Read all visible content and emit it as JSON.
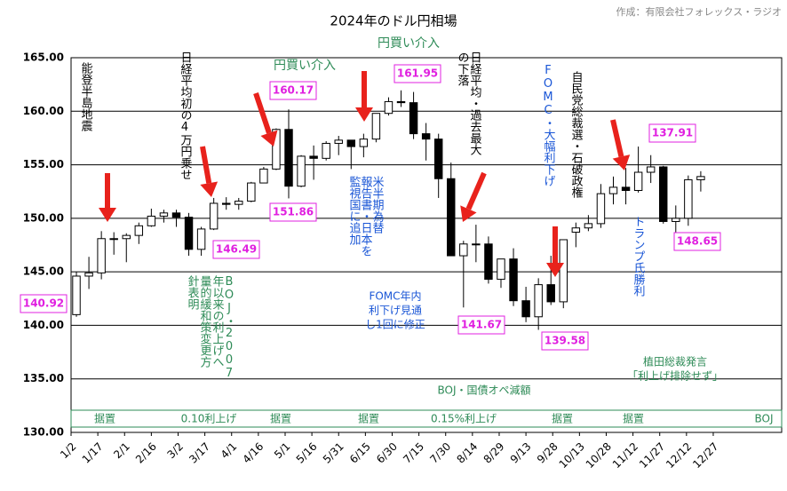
{
  "chart_data": {
    "type": "candlestick",
    "title": "2024年のドル円相場",
    "source": "作成：有限会社フォレックス・ラジオ",
    "color": "#000000",
    "x": [
      "1/5",
      "1/12",
      "1/19",
      "1/26",
      "2/2",
      "2/9",
      "2/16",
      "2/23",
      "3/1",
      "3/8",
      "3/15",
      "3/22",
      "3/29",
      "4/5",
      "4/12",
      "4/19",
      "4/26",
      "5/3",
      "5/10",
      "5/17",
      "5/24",
      "5/31",
      "6/7",
      "6/14",
      "6/21",
      "6/28",
      "7/5",
      "7/12",
      "7/19",
      "7/26",
      "8/2",
      "8/9",
      "8/16",
      "8/23",
      "8/30",
      "9/6",
      "9/13",
      "9/20",
      "9/27",
      "10/4",
      "10/11",
      "10/18",
      "10/25",
      "11/1",
      "11/8",
      "11/15",
      "11/22",
      "11/29",
      "12/6",
      "12/13",
      "12/20"
    ],
    "open": [
      141.0,
      144.6,
      144.9,
      148.1,
      148.1,
      148.4,
      149.3,
      150.2,
      150.5,
      150.1,
      147.1,
      149.0,
      151.4,
      151.3,
      151.6,
      153.3,
      154.6,
      158.3,
      153.0,
      155.8,
      155.6,
      157.0,
      157.3,
      156.7,
      157.4,
      159.8,
      160.9,
      160.8,
      157.9,
      157.4,
      153.7,
      146.5,
      147.6,
      147.6,
      144.3,
      146.2,
      142.3,
      140.8,
      143.8,
      142.2,
      148.7,
      149.1,
      149.5,
      152.3,
      152.9,
      152.6,
      154.3,
      154.8,
      149.7,
      150.0,
      153.6
    ],
    "high": [
      145.0,
      146.4,
      148.8,
      148.7,
      148.6,
      149.6,
      150.9,
      150.8,
      150.8,
      150.5,
      149.2,
      151.9,
      151.97,
      151.9,
      153.4,
      154.8,
      158.4,
      160.17,
      155.9,
      156.8,
      157.2,
      157.7,
      157.3,
      157.9,
      159.8,
      161.3,
      161.95,
      161.8,
      158.9,
      157.9,
      155.2,
      147.9,
      149.4,
      148.3,
      146.2,
      147.2,
      143.6,
      144.4,
      146.5,
      148.0,
      149.6,
      150.3,
      153.2,
      153.9,
      154.7,
      156.7,
      155.9,
      154.9,
      151.2,
      154.0,
      154.4
    ],
    "low": [
      140.8,
      143.4,
      144.3,
      146.6,
      145.9,
      147.6,
      149.2,
      149.6,
      149.2,
      146.5,
      146.5,
      148.9,
      150.8,
      150.8,
      151.5,
      153.6,
      154.5,
      151.86,
      152.9,
      153.6,
      155.4,
      155.9,
      154.6,
      155.7,
      157.1,
      159.6,
      160.4,
      157.4,
      155.4,
      151.9,
      146.5,
      141.67,
      145.9,
      143.9,
      143.5,
      141.8,
      140.3,
      139.58,
      141.9,
      141.6,
      147.3,
      148.8,
      149.1,
      151.3,
      151.3,
      152.4,
      153.3,
      149.5,
      148.65,
      149.3,
      152.5
    ],
    "close": [
      144.6,
      144.9,
      148.1,
      148.1,
      148.4,
      149.3,
      150.2,
      150.5,
      150.1,
      147.1,
      149.0,
      151.4,
      151.3,
      151.6,
      153.3,
      154.6,
      158.3,
      153.0,
      155.8,
      155.6,
      157.0,
      157.3,
      156.7,
      157.4,
      159.8,
      160.9,
      160.8,
      157.9,
      157.4,
      153.7,
      146.5,
      147.6,
      147.6,
      144.3,
      146.2,
      142.3,
      140.8,
      143.8,
      142.2,
      148.0,
      149.1,
      149.5,
      152.3,
      152.9,
      152.6,
      154.3,
      154.8,
      149.7,
      150.0,
      153.6,
      153.9
    ],
    "xlim": [
      "1/2",
      "12/31"
    ],
    "xticks": [
      "1/2",
      "1/17",
      "2/1",
      "2/16",
      "3/2",
      "3/17",
      "4/1",
      "4/16",
      "5/1",
      "5/16",
      "5/31",
      "6/15",
      "6/30",
      "7/15",
      "7/30",
      "8/14",
      "8/29",
      "9/13",
      "9/28",
      "10/13",
      "10/28",
      "11/12",
      "11/27",
      "12/12",
      "12/27"
    ],
    "ylim": [
      130,
      165
    ],
    "yticks": [
      {
        "value": 130,
        "label": "130.00"
      },
      {
        "value": 135,
        "label": "135.00"
      },
      {
        "value": 140,
        "label": "140.00"
      },
      {
        "value": 145,
        "label": "145.00"
      },
      {
        "value": 150,
        "label": "150.00"
      },
      {
        "value": 155,
        "label": "155.00"
      },
      {
        "value": 160,
        "label": "160.00"
      },
      {
        "value": 165,
        "label": "165.00"
      }
    ],
    "grid": true,
    "price_labels": [
      "140.92",
      "146.49",
      "160.17",
      "151.86",
      "161.95",
      "141.67",
      "139.58",
      "137.91",
      "148.65"
    ],
    "annotations": [
      {
        "lines": [
          "能登半島地震"
        ]
      },
      {
        "lines": [
          "日経平均初の4万円乗せ"
        ]
      },
      {
        "lines": [
          "円買い介入"
        ]
      },
      {
        "lines": [
          "円買い介入"
        ]
      },
      {
        "lines": [
          "日経平均・過去最大",
          "の下落"
        ]
      },
      {
        "lines": [
          "FOMC・大幅利下げ"
        ]
      },
      {
        "lines": [
          "自民党総裁選・石破政権"
        ]
      },
      {
        "lines": [
          "米半期為替",
          "報告書・日本を",
          "監視国に追加"
        ]
      },
      {
        "lines": [
          "BOJ・2007",
          "年以来の利上げへ",
          "量的緩和策変更方",
          "針表明"
        ]
      },
      {
        "lines": [
          "トランプ氏勝利"
        ]
      },
      {
        "lines": [
          "FOMC年内",
          "利下げ見通",
          "し1回に修正"
        ]
      },
      {
        "lines": [
          "植田総裁発言",
          "「利上げ排除せず」"
        ]
      },
      {
        "lines": [
          "BOJ・国債オペ減額"
        ]
      }
    ],
    "boj_band": [
      "据置",
      "0.10利上げ",
      "据置",
      "据置",
      "0.15%利上げ",
      "据置",
      "据置",
      "BOJ"
    ]
  }
}
